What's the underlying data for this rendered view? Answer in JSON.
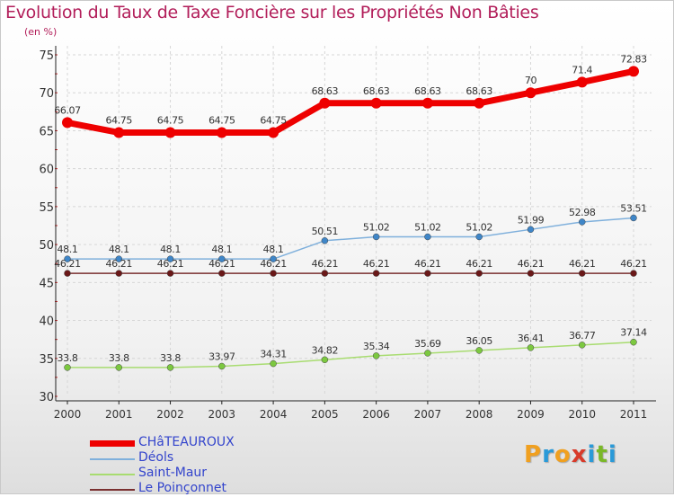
{
  "title": "Evolution du Taux de Taxe Foncière sur les Propriétés Non Bâties",
  "subtitle": "(en %)",
  "logo": {
    "text": "Proxiti",
    "colors": [
      "#f0a020",
      "#2a9ad8",
      "#f0a020",
      "#d83a2a",
      "#2a9ad8",
      "#7ab828",
      "#2a9ad8"
    ]
  },
  "chart_data": {
    "type": "line",
    "title": "Evolution du Taux de Taxe Foncière sur les Propriétés Non Bâties",
    "ylabel": "(en %)",
    "ylim": [
      30,
      75
    ],
    "yticks": [
      30,
      35,
      40,
      45,
      50,
      55,
      60,
      65,
      70,
      75
    ],
    "x": [
      "2000",
      "2001",
      "2002",
      "2003",
      "2004",
      "2005",
      "2006",
      "2007",
      "2008",
      "2009",
      "2010",
      "2011"
    ],
    "grid": true,
    "series": [
      {
        "name": "CHâTEAUROUX",
        "color": "#ee0000",
        "point_color": "#ee0000",
        "width": 7,
        "radius": 6,
        "values": [
          66.07,
          64.75,
          64.75,
          64.75,
          64.75,
          68.63,
          68.63,
          68.63,
          68.63,
          70,
          71.4,
          72.83
        ],
        "labels": [
          "66.07",
          "64.75",
          "64.75",
          "64.75",
          "64.75",
          "68.63",
          "68.63",
          "68.63",
          "68.63",
          "70",
          "71.4",
          "72.83"
        ]
      },
      {
        "name": "Déols",
        "color": "#7fb0dc",
        "point_color": "#3f86c8",
        "width": 1.5,
        "radius": 3.5,
        "values": [
          48.1,
          48.1,
          48.1,
          48.1,
          48.1,
          50.51,
          51.02,
          51.02,
          51.02,
          51.99,
          52.98,
          53.51
        ],
        "labels": [
          "48.1",
          "48.1",
          "48.1",
          "48.1",
          "48.1",
          "50.51",
          "51.02",
          "51.02",
          "51.02",
          "51.99",
          "52.98",
          "53.51"
        ]
      },
      {
        "name": "Saint-Maur",
        "color": "#a8dc70",
        "point_color": "#7cc840",
        "width": 1.5,
        "radius": 3.5,
        "values": [
          33.8,
          33.8,
          33.8,
          33.97,
          34.31,
          34.82,
          35.34,
          35.69,
          36.05,
          36.41,
          36.77,
          37.14
        ],
        "labels": [
          "33.8",
          "33.8",
          "33.8",
          "33.97",
          "34.31",
          "34.82",
          "35.34",
          "35.69",
          "36.05",
          "36.41",
          "36.77",
          "37.14"
        ]
      },
      {
        "name": "Le Poinçonnet",
        "color": "#7a3030",
        "point_color": "#6a1818",
        "width": 1.5,
        "radius": 3.5,
        "values": [
          46.21,
          46.21,
          46.21,
          46.21,
          46.21,
          46.21,
          46.21,
          46.21,
          46.21,
          46.21,
          46.21,
          46.21
        ],
        "labels": [
          "46.21",
          "46.21",
          "46.21",
          "46.21",
          "46.21",
          "46.21",
          "46.21",
          "46.21",
          "46.21",
          "46.21",
          "46.21",
          "46.21"
        ]
      }
    ]
  }
}
